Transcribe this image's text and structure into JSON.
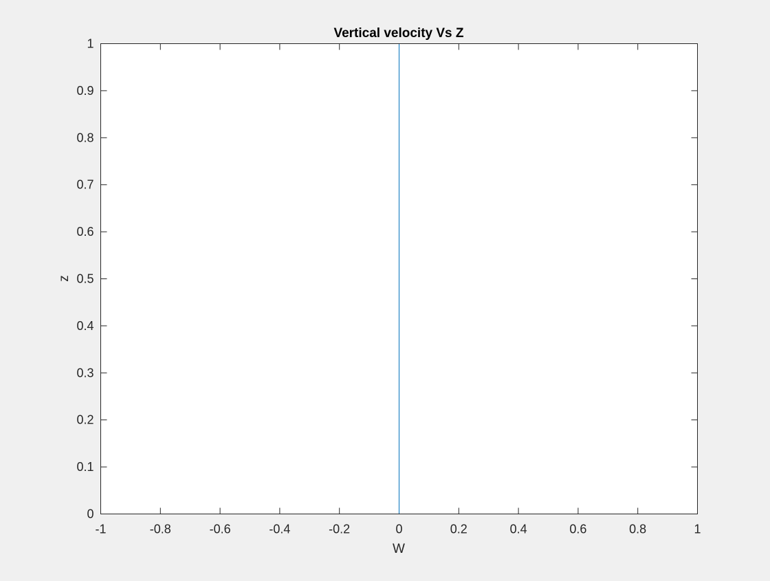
{
  "chart_data": {
    "type": "line",
    "title": "Vertical velocity Vs Z",
    "xlabel": "W",
    "ylabel": "z",
    "xlim": [
      -1,
      1
    ],
    "ylim": [
      0,
      1
    ],
    "xticks": [
      -1,
      -0.8,
      -0.6,
      -0.4,
      -0.2,
      0,
      0.2,
      0.4,
      0.6,
      0.8,
      1
    ],
    "xtick_labels": [
      "-1",
      "-0.8",
      "-0.6",
      "-0.4",
      "-0.2",
      "0",
      "0.2",
      "0.4",
      "0.6",
      "0.8",
      "1"
    ],
    "yticks": [
      0,
      0.1,
      0.2,
      0.3,
      0.4,
      0.5,
      0.6,
      0.7,
      0.8,
      0.9,
      1
    ],
    "ytick_labels": [
      "0",
      "0.1",
      "0.2",
      "0.3",
      "0.4",
      "0.5",
      "0.6",
      "0.7",
      "0.8",
      "0.9",
      "1"
    ],
    "grid": false,
    "series": [
      {
        "color": "#0072BD",
        "x": [
          0,
          0
        ],
        "y": [
          0,
          1
        ]
      }
    ]
  },
  "colors": {
    "figure_background": "#f0f0f0",
    "axes_background": "#ffffff",
    "axis_color": "#262626"
  }
}
